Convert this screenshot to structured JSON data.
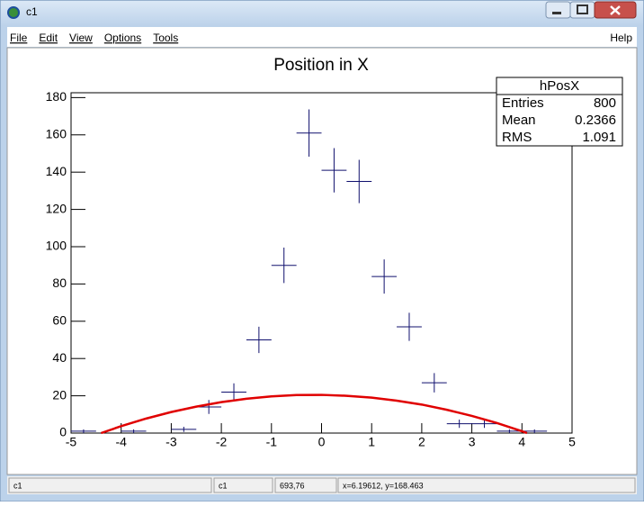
{
  "window": {
    "title": "c1",
    "menu": [
      "File",
      "Edit",
      "View",
      "Options",
      "Tools"
    ],
    "help": "Help",
    "status": [
      "c1",
      "c1",
      "693,76",
      "x=6.19612, y=168.463"
    ]
  },
  "chart_data": {
    "type": "errorbar",
    "title": "Position in X",
    "xlim": [
      -5,
      5
    ],
    "xticks": [
      -5,
      -4,
      -3,
      -2,
      -1,
      0,
      1,
      2,
      3,
      4,
      5
    ],
    "ylim": [
      0,
      182.6
    ],
    "yticks": [
      0,
      20,
      40,
      60,
      80,
      100,
      120,
      140,
      160,
      180
    ],
    "series": [
      {
        "type": "errorbar",
        "color": "#10106e",
        "x": [
          -4.75,
          -3.75,
          -2.75,
          -2.25,
          -1.75,
          -1.25,
          -0.75,
          -0.25,
          0.25,
          0.75,
          1.25,
          1.75,
          2.25,
          2.75,
          3.25,
          3.75,
          4.25
        ],
        "values": [
          1,
          1,
          2,
          14,
          22,
          50,
          90,
          161,
          141,
          135,
          84,
          57,
          27,
          5,
          5,
          1,
          1
        ],
        "errors": [
          1,
          1,
          1.41,
          3.74,
          4.69,
          7.07,
          9.49,
          12.69,
          11.87,
          11.62,
          9.17,
          7.55,
          5.2,
          2.24,
          2.24,
          1,
          1
        ]
      },
      {
        "type": "line",
        "color": "#e00000",
        "x": [
          -4.4,
          -4,
          -3.5,
          -3,
          -2.5,
          -2,
          -1.5,
          -1,
          -0.5,
          0,
          0.5,
          1,
          1.5,
          2,
          2.5,
          3,
          3.5,
          4,
          4.1
        ],
        "values": [
          0,
          3.7,
          7.8,
          11.3,
          14.2,
          16.6,
          18.4,
          19.7,
          20.4,
          20.5,
          20.0,
          19.0,
          17.4,
          15.3,
          12.5,
          9.2,
          5.4,
          1.0,
          0
        ]
      }
    ],
    "stats": {
      "title": "hPosX",
      "rows": [
        [
          "Entries",
          "800"
        ],
        [
          "Mean",
          "0.2366"
        ],
        [
          "RMS",
          "1.091"
        ]
      ]
    }
  }
}
